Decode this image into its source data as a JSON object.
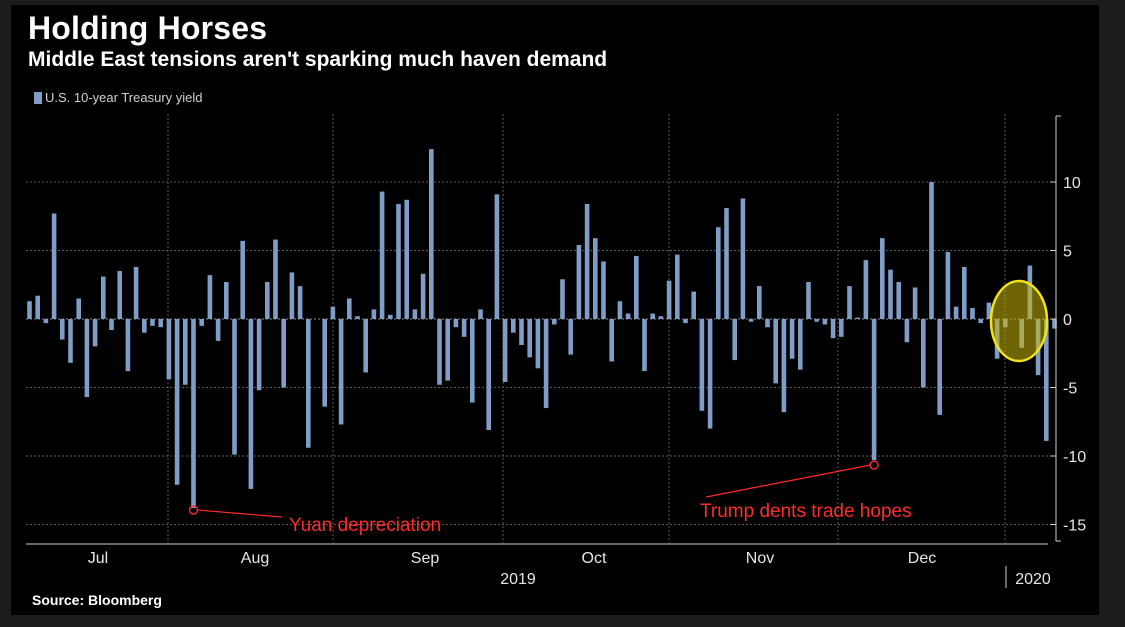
{
  "colors": {
    "background": "#000000",
    "bar": "#7f9dc6",
    "annotation": "#ff2a2a",
    "highlight": "#c8b40a",
    "grid": "#5a5a5a"
  },
  "chart_data": {
    "type": "bar",
    "title": "Holding Horses",
    "subtitle": "Middle East tensions aren't sparking much haven demand",
    "source": "Source: Bloomberg",
    "legend": [
      "U.S. 10-year Treasury yield"
    ],
    "series": [
      {
        "name": "U.S. 10-year Treasury yield",
        "values": [
          1.3,
          1.7,
          -0.3,
          7.7,
          -1.5,
          -3.2,
          1.5,
          -5.7,
          -2.0,
          3.1,
          -0.8,
          3.5,
          -3.8,
          3.8,
          -1.0,
          -0.5,
          -0.6,
          -4.4,
          -12.1,
          -4.8,
          -13.8,
          -0.5,
          3.2,
          -1.6,
          2.7,
          -9.9,
          5.7,
          -12.4,
          -5.2,
          2.7,
          5.8,
          -5.0,
          3.4,
          2.4,
          -9.4,
          0.0,
          -6.4,
          0.9,
          -7.7,
          1.5,
          0.2,
          -3.9,
          0.7,
          9.3,
          0.3,
          8.4,
          8.7,
          0.7,
          3.3,
          12.4,
          -4.8,
          -4.5,
          -0.6,
          -1.3,
          -6.1,
          0.7,
          -8.1,
          9.1,
          -4.6,
          -1.0,
          -1.9,
          -2.8,
          -3.6,
          -6.5,
          -0.4,
          2.9,
          -2.6,
          5.4,
          8.4,
          5.9,
          4.2,
          -3.1,
          1.3,
          0.4,
          4.6,
          -3.8,
          0.4,
          0.2,
          2.8,
          4.7,
          -0.3,
          2.0,
          -6.7,
          -8.0,
          6.7,
          8.1,
          -3.0,
          8.8,
          -0.2,
          2.4,
          -0.6,
          -4.7,
          -6.8,
          -2.9,
          -3.7,
          2.7,
          -0.2,
          -0.4,
          -1.4,
          -1.3,
          2.4,
          0.1,
          4.3,
          -10.3,
          5.9,
          3.6,
          2.7,
          -1.7,
          2.3,
          -5.0,
          10.0,
          -7.0,
          4.9,
          0.9,
          3.8,
          0.8,
          -0.3,
          1.2,
          -2.9,
          -0.6,
          0.0,
          -2.1,
          3.9,
          -4.1,
          -8.9,
          -0.7
        ]
      }
    ],
    "ylim": [
      -16,
      15
    ],
    "yticks": [
      -15,
      -10,
      -5,
      0,
      5,
      10
    ],
    "ytick_labels": [
      "-15",
      "-10",
      "-5",
      "0",
      "5",
      "10"
    ],
    "month_labels": [
      "Jul",
      "Aug",
      "Sep",
      "Oct",
      "Nov",
      "Dec"
    ],
    "year_labels": [
      "2019",
      "2020"
    ],
    "annotations": [
      {
        "text": "Yuan depreciation",
        "bar_index": 20,
        "value": -13.8
      },
      {
        "text": "Trump dents trade hopes",
        "bar_index": 103,
        "value": -10.3
      }
    ],
    "highlight": {
      "from_index": 122,
      "to_index": 125,
      "label": "highlighted"
    }
  }
}
